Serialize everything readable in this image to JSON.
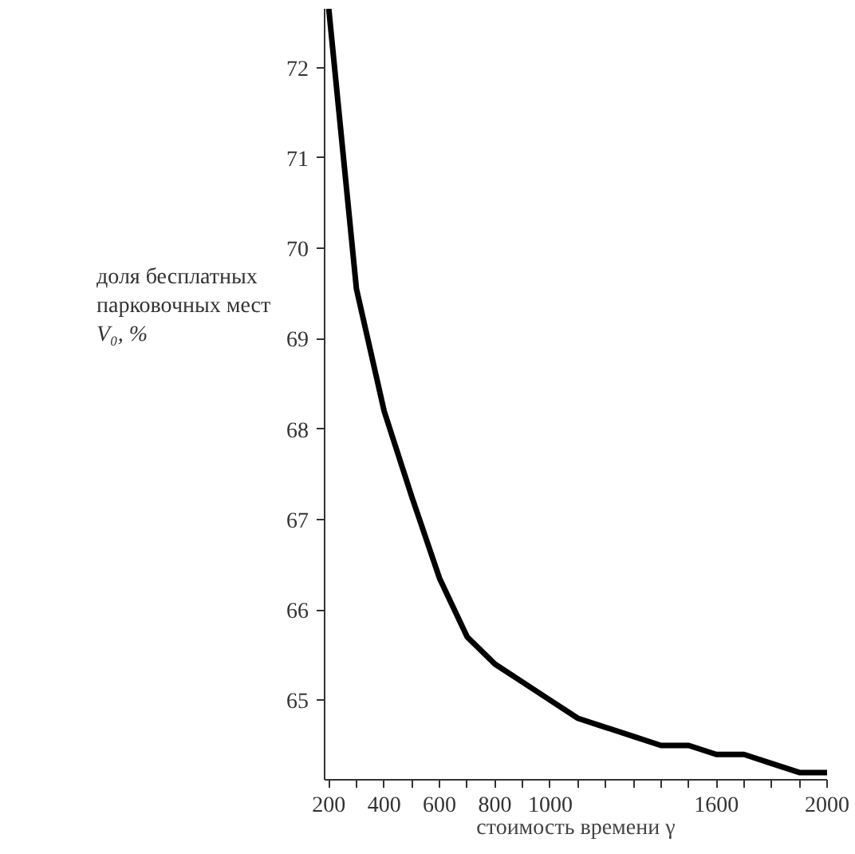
{
  "chart_data": {
    "type": "line",
    "xlabel": "стоимость времени γ",
    "ylabel": "доля бесплатных\n парковочных мест\nV₀, %",
    "x": [
      200,
      250,
      300,
      400,
      500,
      600,
      700,
      800,
      900,
      1000,
      1100,
      1200,
      1300,
      1400,
      1500,
      1600,
      1700,
      1800,
      1900,
      2000
    ],
    "series": [
      {
        "color": "#000000",
        "values": [
          72.65,
          71.1,
          69.55,
          68.2,
          67.25,
          66.35,
          65.7,
          65.4,
          65.2,
          65.0,
          64.8,
          64.7,
          64.6,
          64.5,
          64.5,
          64.4,
          64.4,
          64.3,
          64.2,
          64.2
        ]
      }
    ],
    "xlim": [
      185,
      2000
    ],
    "ylim": [
      64.12,
      72.65
    ],
    "xticks": [
      200,
      {
        "value": 300,
        "label": null
      },
      400,
      {
        "value": 500,
        "label": null
      },
      600,
      {
        "value": 700,
        "label": null
      },
      800,
      {
        "value": 900,
        "label": null
      },
      1000,
      {
        "value": 1100,
        "label": null
      },
      {
        "value": 1200,
        "label": null
      },
      {
        "value": 1300,
        "label": null
      },
      {
        "value": 1400,
        "label": null
      },
      {
        "value": 1500,
        "label": null
      },
      1600,
      {
        "value": 1700,
        "label": null
      },
      {
        "value": 1800,
        "label": null
      },
      {
        "value": 1900,
        "label": null
      },
      2000
    ],
    "yticks": [
      65,
      66,
      67,
      68,
      69,
      70,
      71,
      72
    ],
    "grid": false,
    "marker": "none",
    "line_style": "solid"
  }
}
